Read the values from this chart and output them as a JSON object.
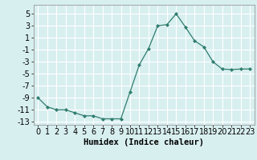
{
  "x": [
    0,
    1,
    2,
    3,
    4,
    5,
    6,
    7,
    8,
    9,
    10,
    11,
    12,
    13,
    14,
    15,
    16,
    17,
    18,
    19,
    20,
    21,
    22,
    23
  ],
  "y": [
    -9,
    -10.5,
    -11,
    -11,
    -11.5,
    -12,
    -12,
    -12.5,
    -12.5,
    -12.5,
    -8,
    -3.5,
    -0.8,
    3,
    3.2,
    5,
    2.8,
    0.5,
    -0.5,
    -3,
    -4.2,
    -4.3,
    -4.2,
    -4.2
  ],
  "line_color": "#2e7d6e",
  "marker": "D",
  "marker_size": 2.0,
  "bg_color": "#d8eff0",
  "grid_color": "#ffffff",
  "xlabel": "Humidex (Indice chaleur)",
  "xlabel_fontsize": 7.5,
  "tick_fontsize": 7,
  "xlim": [
    -0.5,
    23.5
  ],
  "ylim": [
    -13.5,
    6.5
  ],
  "yticks": [
    5,
    3,
    1,
    -1,
    -3,
    -5,
    -7,
    -9,
    -11,
    -13
  ],
  "xticks": [
    0,
    1,
    2,
    3,
    4,
    5,
    6,
    7,
    8,
    9,
    10,
    11,
    12,
    13,
    14,
    15,
    16,
    17,
    18,
    19,
    20,
    21,
    22,
    23
  ]
}
